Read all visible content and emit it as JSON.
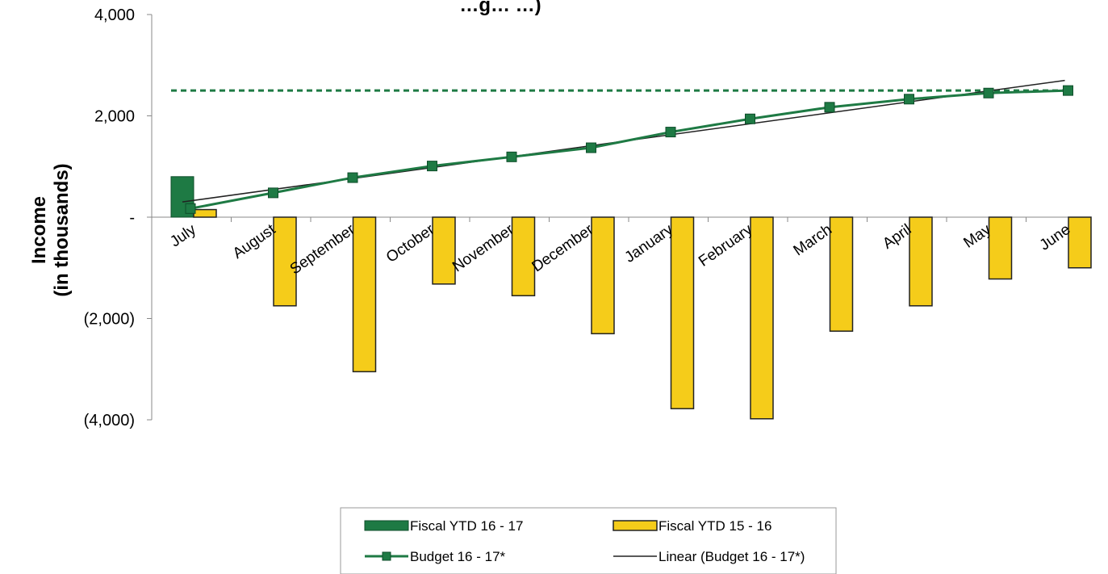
{
  "chart_data": {
    "type": "bar",
    "title": "…g… …)",
    "xlabel": "",
    "ylabel_lines": [
      "Income",
      "(in thousands)"
    ],
    "ylim": [
      -4000,
      4000
    ],
    "yticks": [
      {
        "value": 4000,
        "label": "4,000"
      },
      {
        "value": 2000,
        "label": "2,000"
      },
      {
        "value": 0,
        "label": "-"
      },
      {
        "value": -2000,
        "label": "(2,000)"
      },
      {
        "value": -4000,
        "label": "(4,000)"
      }
    ],
    "categories": [
      "July",
      "August",
      "September",
      "October",
      "November",
      "December",
      "January",
      "February",
      "March",
      "April",
      "May",
      "June"
    ],
    "series": [
      {
        "name": "Fiscal YTD 16 - 17",
        "kind": "bar",
        "color": "#1e7a44",
        "values": [
          800,
          null,
          null,
          null,
          null,
          null,
          null,
          null,
          null,
          null,
          null,
          null
        ]
      },
      {
        "name": "Fiscal YTD 15 - 16",
        "kind": "bar",
        "color": "#f5cc1a",
        "values": [
          150,
          -1750,
          -3050,
          -1320,
          -1550,
          -2300,
          -3780,
          -3980,
          -2250,
          -1750,
          -1220,
          -1000
        ]
      },
      {
        "name": "Budget 16 - 17*",
        "kind": "line",
        "color": "#1e7a44",
        "values": [
          170,
          480,
          780,
          1010,
          1190,
          1370,
          1680,
          1940,
          2170,
          2330,
          2450,
          2500
        ]
      },
      {
        "name": "Linear (Budget 16 - 17*)",
        "kind": "trendline",
        "color": "#222222",
        "values": [
          300,
          520,
          730,
          940,
          1150,
          1370,
          1580,
          1790,
          2010,
          2220,
          2430,
          2700
        ]
      }
    ],
    "reference_line": {
      "value": 2500,
      "color": "#1e7a44",
      "style": "dashed"
    },
    "grid": false,
    "legend": {
      "position": "bottom",
      "entries": [
        "Fiscal YTD 16 - 17",
        "Fiscal YTD 15 - 16",
        "Budget 16 - 17*",
        "Linear (Budget 16 - 17*)"
      ]
    }
  }
}
